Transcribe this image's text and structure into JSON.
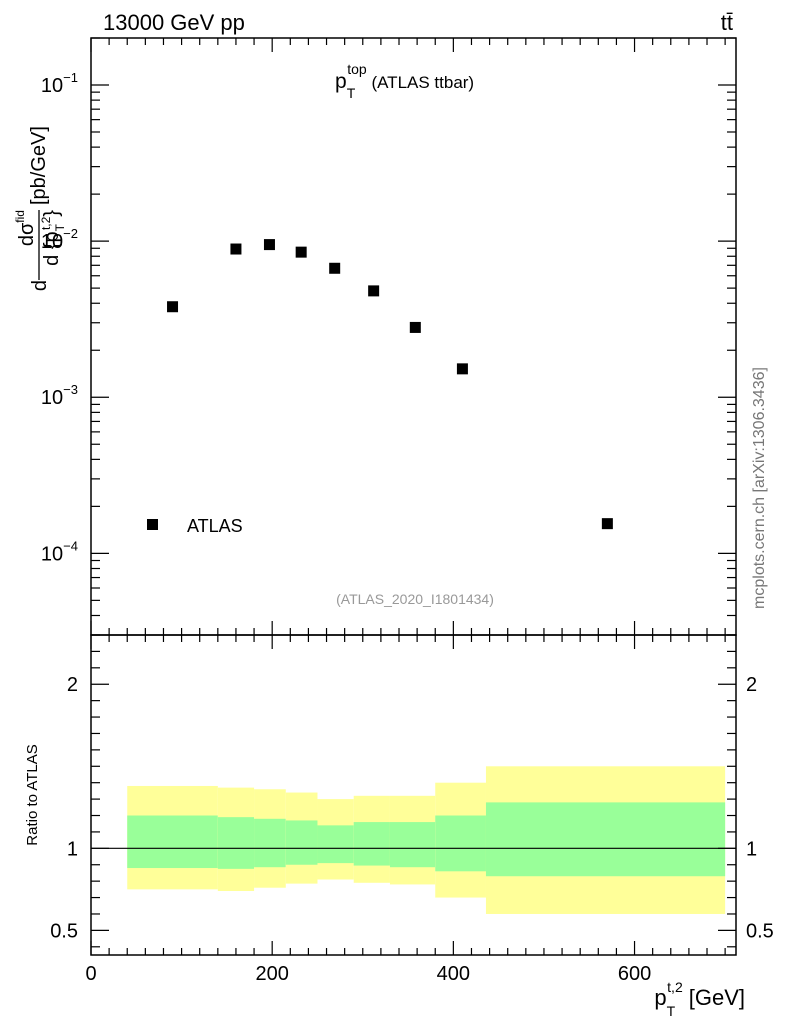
{
  "header": {
    "left": "13000 GeV pp",
    "right": "tt̄"
  },
  "title": {
    "main": "p",
    "sub": "T",
    "sup": "top",
    "rest": " (ATLAS ttbar)"
  },
  "source": "(ATLAS_2020_I1801434)",
  "watermark": "mcplots.cern.ch [arXiv:1306.3436]",
  "legend": {
    "label": "ATLAS"
  },
  "colors": {
    "marker": "#000000",
    "band_inner": "#99ff99",
    "band_outer": "#ffff99",
    "axis": "#000000",
    "source_text": "#999999"
  },
  "chart_data": [
    {
      "type": "scatter",
      "panel": "main",
      "title": "p_T^top (ATLAS ttbar)",
      "ylabel": "dσ^fid / d{p_T^t,2} [pb/GeV]",
      "ylabel_parts": {
        "d": "d",
        "sigma": "dσ",
        "fid": "fid",
        "den": "d {p",
        "den_sub": "T",
        "den_sup": "t,2",
        "den_close": "}",
        "unit": "[pb/GeV]"
      },
      "yscale": "log",
      "xlim": [
        0,
        712
      ],
      "ylim": [
        3e-05,
        0.2
      ],
      "yticks": [
        {
          "value": 0.1,
          "base": "10",
          "exp": "−1"
        },
        {
          "value": 0.01,
          "base": "10",
          "exp": "−2"
        },
        {
          "value": 0.001,
          "base": "10",
          "exp": "−3"
        },
        {
          "value": 0.0001,
          "base": "10",
          "exp": "−4"
        }
      ],
      "series": [
        {
          "name": "ATLAS",
          "x": [
            90,
            160,
            197,
            232,
            269,
            312,
            358,
            410,
            570
          ],
          "y": [
            0.0038,
            0.0089,
            0.0095,
            0.0085,
            0.0067,
            0.0048,
            0.0028,
            0.00152,
            0.000155
          ]
        }
      ]
    },
    {
      "type": "area",
      "panel": "ratio",
      "ylabel": "Ratio to ATLAS",
      "xlabel": "p_T^t,2 [GeV]",
      "xlabel_parts": {
        "main": "p",
        "sub": "T",
        "sup": "t,2",
        "unit": "[GeV]"
      },
      "xlim": [
        0,
        712
      ],
      "ylim": [
        0.35,
        2.3
      ],
      "reference": 1.0,
      "xticks": [
        {
          "value": 0,
          "label": "0"
        },
        {
          "value": 200,
          "label": "200"
        },
        {
          "value": 400,
          "label": "400"
        },
        {
          "value": 600,
          "label": "600"
        }
      ],
      "yticks": [
        {
          "value": 0.5,
          "label": "0.5"
        },
        {
          "value": 1,
          "label": "1"
        },
        {
          "value": 2,
          "label": "2"
        }
      ],
      "bins": [
        {
          "lo": 40,
          "hi": 140,
          "inner": [
            0.88,
            1.2
          ],
          "outer": [
            0.75,
            1.38
          ]
        },
        {
          "lo": 140,
          "hi": 180,
          "inner": [
            0.875,
            1.19
          ],
          "outer": [
            0.74,
            1.37
          ]
        },
        {
          "lo": 180,
          "hi": 215,
          "inner": [
            0.885,
            1.18
          ],
          "outer": [
            0.76,
            1.36
          ]
        },
        {
          "lo": 215,
          "hi": 250,
          "inner": [
            0.9,
            1.17
          ],
          "outer": [
            0.785,
            1.34
          ]
        },
        {
          "lo": 250,
          "hi": 290,
          "inner": [
            0.91,
            1.14
          ],
          "outer": [
            0.81,
            1.3
          ]
        },
        {
          "lo": 290,
          "hi": 330,
          "inner": [
            0.895,
            1.16
          ],
          "outer": [
            0.79,
            1.32
          ]
        },
        {
          "lo": 330,
          "hi": 380,
          "inner": [
            0.885,
            1.16
          ],
          "outer": [
            0.78,
            1.32
          ]
        },
        {
          "lo": 380,
          "hi": 436,
          "inner": [
            0.86,
            1.2
          ],
          "outer": [
            0.7,
            1.4
          ]
        },
        {
          "lo": 436,
          "hi": 700,
          "inner": [
            0.83,
            1.28
          ],
          "outer": [
            0.6,
            1.5
          ]
        }
      ]
    }
  ]
}
